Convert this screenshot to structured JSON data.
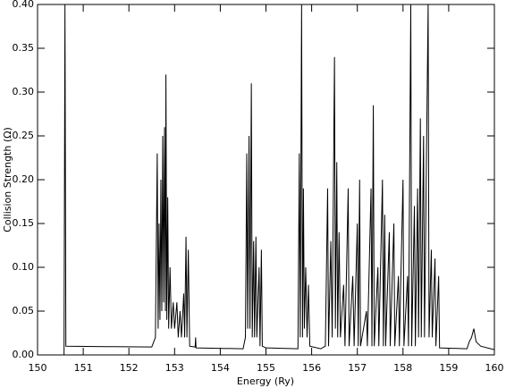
{
  "chart_data": {
    "type": "line",
    "xlabel": "Energy (Ry)",
    "ylabel": "Collision Strength (Ω)",
    "x": [
      150.58,
      150.6,
      150.62,
      151.5,
      152.5,
      152.58,
      152.62,
      152.64,
      152.66,
      152.68,
      152.7,
      152.72,
      152.74,
      152.76,
      152.78,
      152.8,
      152.81,
      152.83,
      152.85,
      152.87,
      152.9,
      152.93,
      152.97,
      153.0,
      153.05,
      153.08,
      153.12,
      153.15,
      153.2,
      153.22,
      153.25,
      153.27,
      153.3,
      153.33,
      153.45,
      153.46,
      153.47,
      154.5,
      154.55,
      154.58,
      154.6,
      154.63,
      154.65,
      154.68,
      154.7,
      154.73,
      154.75,
      154.78,
      154.8,
      154.85,
      154.87,
      154.9,
      154.92,
      155.0,
      155.7,
      155.73,
      155.75,
      155.78,
      155.8,
      155.82,
      155.84,
      155.87,
      155.9,
      155.93,
      155.96,
      156.2,
      156.3,
      156.35,
      156.37,
      156.42,
      156.45,
      156.5,
      156.52,
      156.55,
      156.57,
      156.6,
      156.63,
      156.7,
      156.73,
      156.8,
      156.82,
      156.9,
      156.93,
      157.0,
      157.02,
      157.05,
      157.07,
      157.2,
      157.22,
      157.3,
      157.32,
      157.35,
      157.37,
      157.45,
      157.47,
      157.55,
      157.57,
      157.6,
      157.62,
      157.7,
      157.72,
      157.8,
      157.82,
      157.9,
      157.92,
      158.0,
      158.02,
      158.1,
      158.12,
      158.17,
      158.19,
      158.25,
      158.27,
      158.32,
      158.34,
      158.38,
      158.4,
      158.45,
      158.47,
      158.55,
      158.57,
      158.62,
      158.64,
      158.7,
      158.72,
      158.78,
      158.8,
      159.4,
      159.45,
      159.5,
      159.55,
      159.6,
      159.7,
      160.0
    ],
    "series": [
      {
        "color": "#000000",
        "values": [
          0.0,
          0.4,
          0.01,
          0.0095,
          0.009,
          0.02,
          0.23,
          0.03,
          0.15,
          0.04,
          0.2,
          0.05,
          0.25,
          0.06,
          0.26,
          0.05,
          0.32,
          0.04,
          0.18,
          0.03,
          0.1,
          0.03,
          0.06,
          0.03,
          0.06,
          0.02,
          0.05,
          0.02,
          0.07,
          0.02,
          0.135,
          0.02,
          0.12,
          0.01,
          0.009,
          0.02,
          0.008,
          0.007,
          0.02,
          0.23,
          0.03,
          0.25,
          0.03,
          0.31,
          0.02,
          0.13,
          0.02,
          0.135,
          0.02,
          0.1,
          0.01,
          0.12,
          0.01,
          0.008,
          0.007,
          0.23,
          0.02,
          0.4,
          0.02,
          0.19,
          0.03,
          0.1,
          0.02,
          0.08,
          0.01,
          0.007,
          0.01,
          0.19,
          0.01,
          0.13,
          0.02,
          0.34,
          0.03,
          0.22,
          0.02,
          0.14,
          0.02,
          0.08,
          0.01,
          0.19,
          0.01,
          0.09,
          0.01,
          0.15,
          0.01,
          0.2,
          0.01,
          0.05,
          0.01,
          0.19,
          0.01,
          0.285,
          0.01,
          0.1,
          0.01,
          0.2,
          0.01,
          0.16,
          0.01,
          0.14,
          0.01,
          0.15,
          0.01,
          0.09,
          0.01,
          0.2,
          0.01,
          0.09,
          0.01,
          0.4,
          0.01,
          0.17,
          0.01,
          0.19,
          0.02,
          0.27,
          0.02,
          0.25,
          0.02,
          0.4,
          0.02,
          0.12,
          0.02,
          0.11,
          0.01,
          0.09,
          0.008,
          0.007,
          0.015,
          0.02,
          0.03,
          0.015,
          0.01,
          0.006
        ]
      }
    ],
    "xlim": [
      150,
      160
    ],
    "xticks": [
      150,
      151,
      152,
      153,
      154,
      155,
      156,
      157,
      158,
      159,
      160
    ],
    "ylim": [
      0,
      0.4
    ],
    "yticks": [
      {
        "value": 0,
        "label": "0.00"
      },
      {
        "value": 0.05,
        "label": "0.05"
      },
      {
        "value": 0.1,
        "label": "0.10"
      },
      {
        "value": 0.15,
        "label": "0.15"
      },
      {
        "value": 0.2,
        "label": "0.20"
      },
      {
        "value": 0.25,
        "label": "0.25"
      },
      {
        "value": 0.3,
        "label": "0.30"
      },
      {
        "value": 0.35,
        "label": "0.35"
      },
      {
        "value": 0.4,
        "label": "0.40"
      }
    ]
  }
}
